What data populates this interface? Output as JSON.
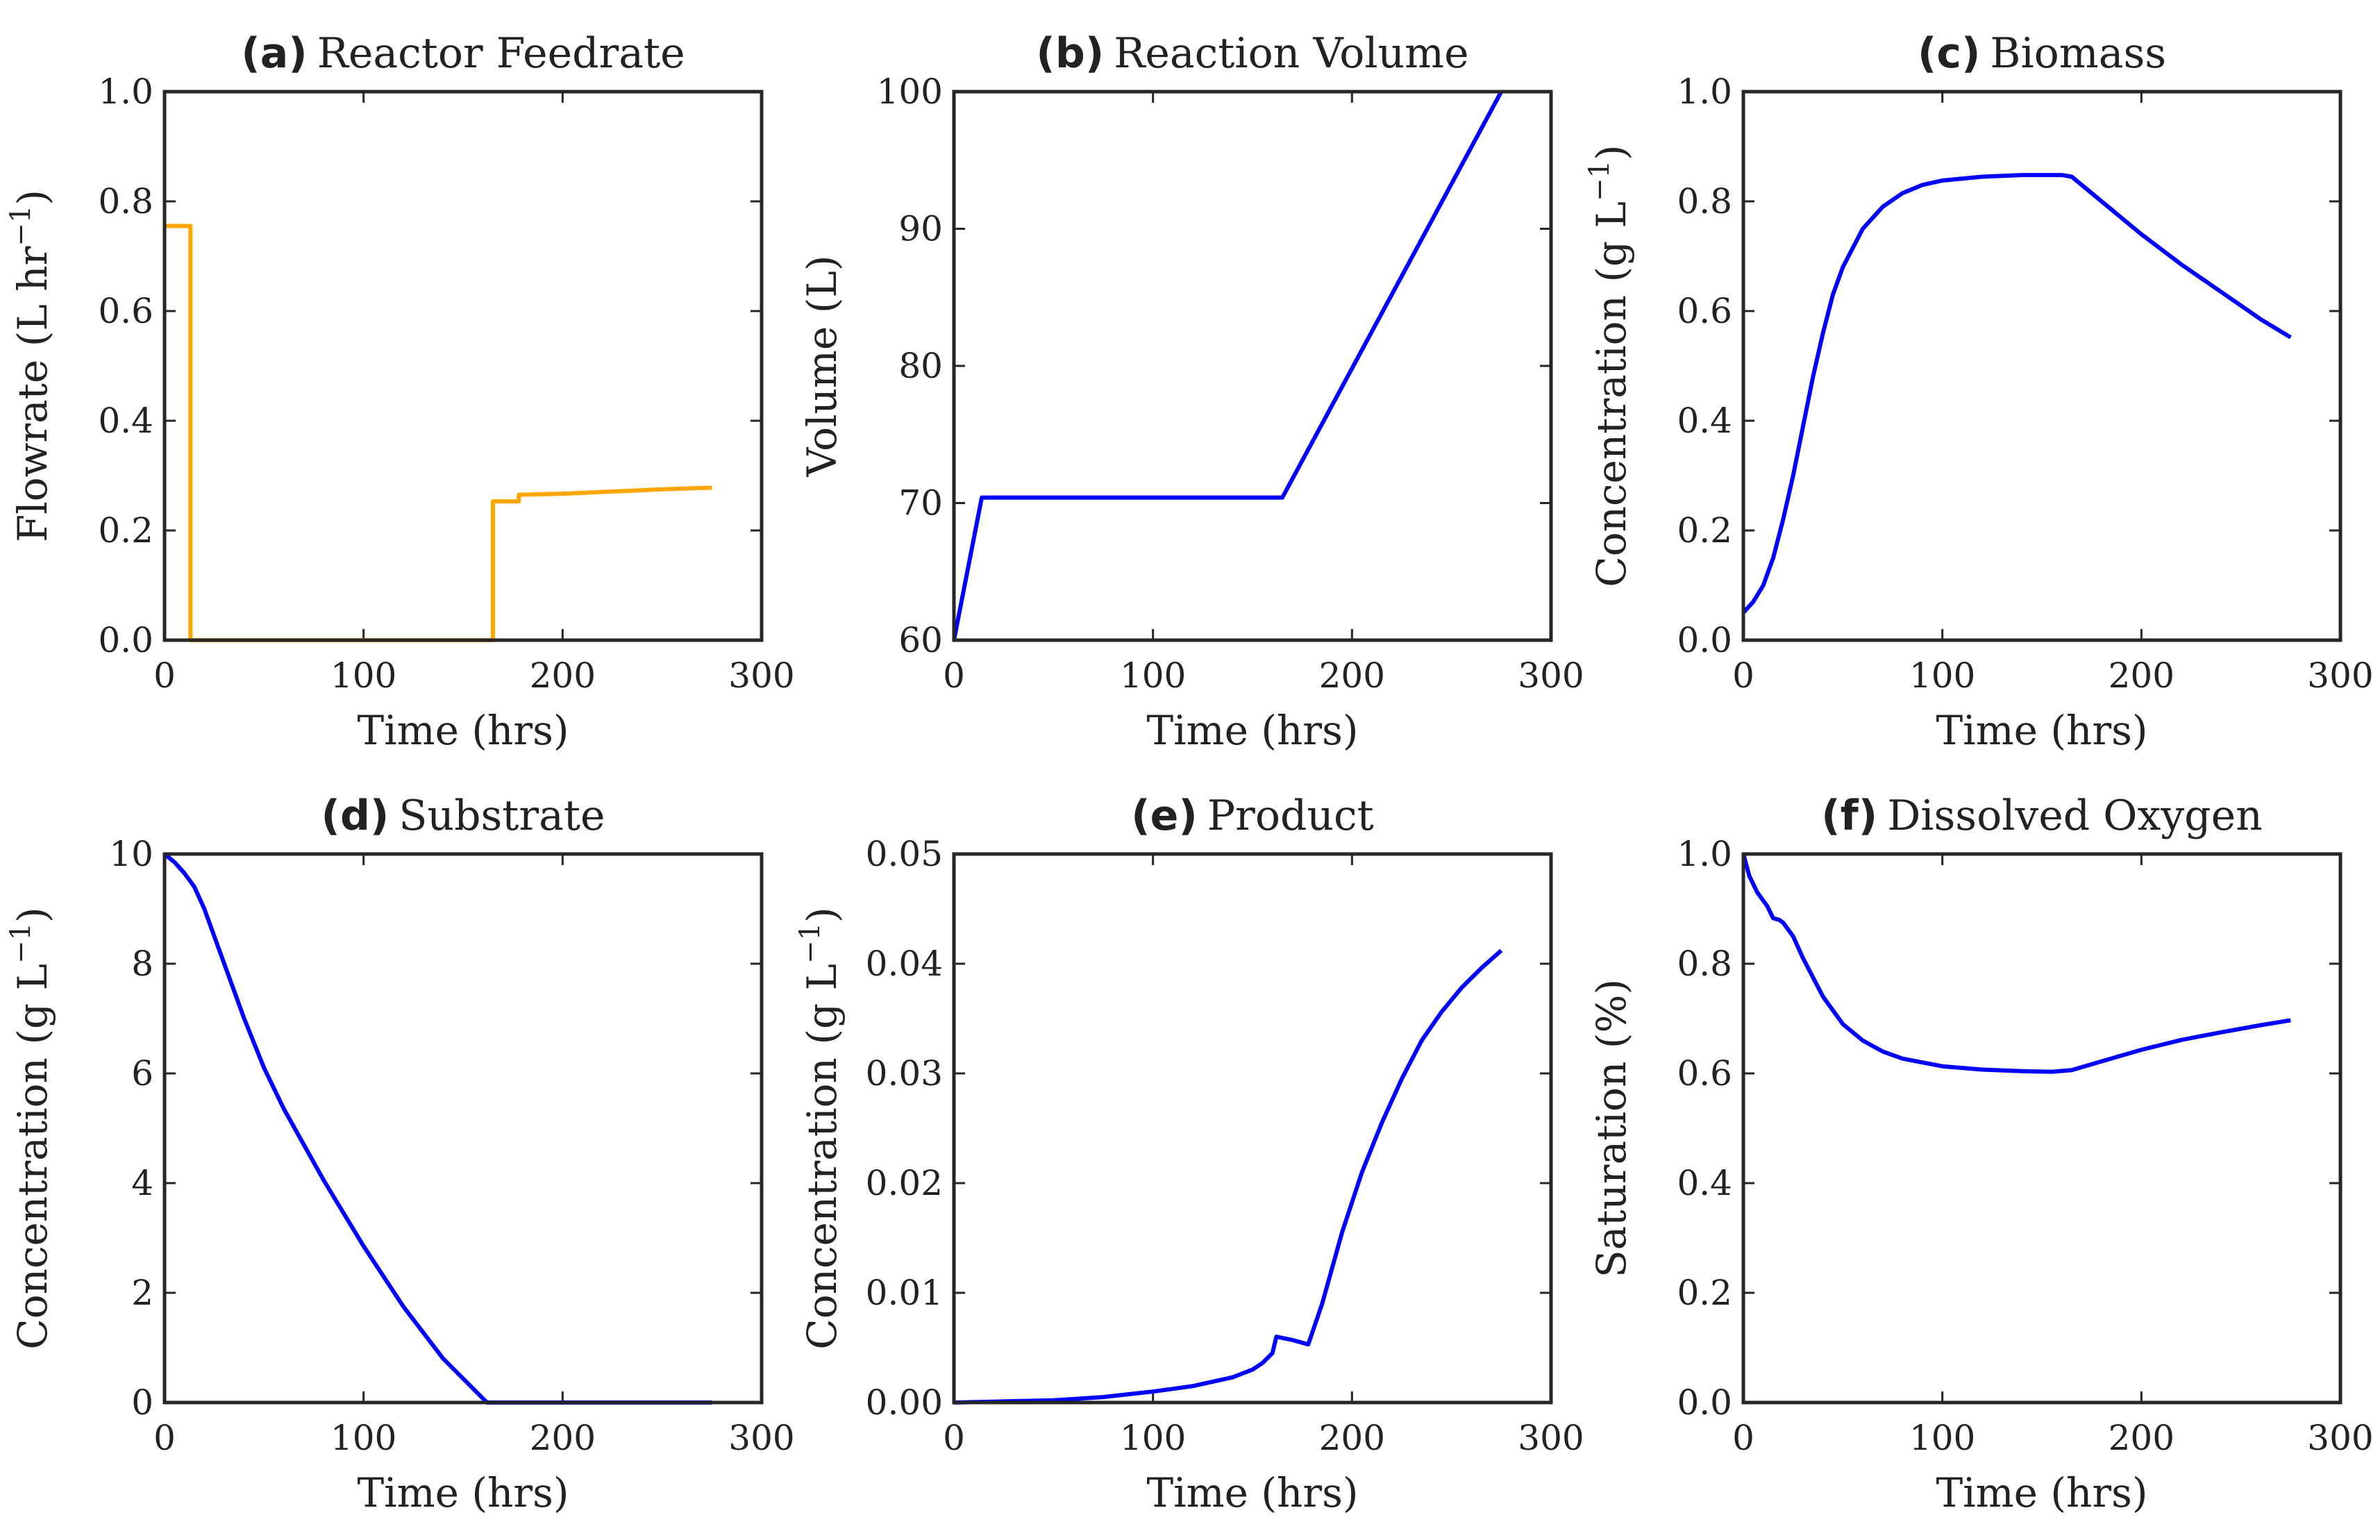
{
  "chart_data": [
    {
      "type": "line",
      "panel_letter": "(a)",
      "title": "Reactor Feedrate",
      "xlabel": "Time (hrs)",
      "ylabel": "Flowrate (L hr",
      "ylabel_sup": "−1",
      "ylabel_end": ")",
      "xlim": [
        0,
        300
      ],
      "ylim": [
        0,
        1
      ],
      "xticks": [
        0,
        100,
        200,
        300
      ],
      "yticks": [
        0,
        0.2,
        0.4,
        0.6,
        0.8,
        1.0
      ],
      "yticklabels": [
        "0.0",
        "0.2",
        "0.4",
        "0.6",
        "0.8",
        "1.0"
      ],
      "color": "#FFA500",
      "series": [
        {
          "x": [
            0,
            13,
            13,
            165,
            165,
            178,
            178,
            200,
            225,
            250,
            275
          ],
          "y": [
            0.755,
            0.755,
            0,
            0,
            0.253,
            0.253,
            0.265,
            0.267,
            0.271,
            0.275,
            0.278
          ]
        }
      ]
    },
    {
      "type": "line",
      "panel_letter": "(b)",
      "title": "Reaction Volume",
      "xlabel": "Time (hrs)",
      "ylabel": "Volume (L)",
      "ylabel_sup": "",
      "ylabel_end": "",
      "xlim": [
        0,
        300
      ],
      "ylim": [
        60,
        100
      ],
      "xticks": [
        0,
        100,
        200,
        300
      ],
      "yticks": [
        60,
        70,
        80,
        90,
        100
      ],
      "yticklabels": [
        "60",
        "70",
        "80",
        "90",
        "100"
      ],
      "color": "#0000FF",
      "series": [
        {
          "x": [
            0,
            14,
            165,
            275
          ],
          "y": [
            60,
            70.4,
            70.4,
            100
          ]
        }
      ]
    },
    {
      "type": "line",
      "panel_letter": "(c)",
      "title": "Biomass",
      "xlabel": "Time (hrs)",
      "ylabel": "Concentration (g L",
      "ylabel_sup": "−1",
      "ylabel_end": ")",
      "xlim": [
        0,
        300
      ],
      "ylim": [
        0,
        1
      ],
      "xticks": [
        0,
        100,
        200,
        300
      ],
      "yticks": [
        0,
        0.2,
        0.4,
        0.6,
        0.8,
        1.0
      ],
      "yticklabels": [
        "0.0",
        "0.2",
        "0.4",
        "0.6",
        "0.8",
        "1.0"
      ],
      "color": "#0000FF",
      "series": [
        {
          "x": [
            0,
            5,
            10,
            15,
            20,
            25,
            30,
            35,
            40,
            45,
            50,
            60,
            70,
            80,
            90,
            100,
            120,
            140,
            160,
            165,
            180,
            200,
            220,
            240,
            260,
            275
          ],
          "y": [
            0.05,
            0.07,
            0.1,
            0.15,
            0.22,
            0.3,
            0.39,
            0.48,
            0.56,
            0.63,
            0.68,
            0.75,
            0.79,
            0.815,
            0.83,
            0.838,
            0.845,
            0.848,
            0.848,
            0.845,
            0.8,
            0.74,
            0.685,
            0.635,
            0.585,
            0.552
          ]
        }
      ]
    },
    {
      "type": "line",
      "panel_letter": "(d)",
      "title": "Substrate",
      "xlabel": "Time (hrs)",
      "ylabel": "Concentration (g L",
      "ylabel_sup": "−1",
      "ylabel_end": ")",
      "xlim": [
        0,
        300
      ],
      "ylim": [
        0,
        10
      ],
      "xticks": [
        0,
        100,
        200,
        300
      ],
      "yticks": [
        0,
        2,
        4,
        6,
        8,
        10
      ],
      "yticklabels": [
        "0",
        "2",
        "4",
        "6",
        "8",
        "10"
      ],
      "color": "#0000FF",
      "series": [
        {
          "x": [
            0,
            5,
            10,
            15,
            20,
            30,
            40,
            50,
            60,
            80,
            100,
            120,
            140,
            162,
            200,
            240,
            275
          ],
          "y": [
            10,
            9.85,
            9.65,
            9.4,
            9.0,
            8.0,
            7.0,
            6.1,
            5.35,
            4.05,
            2.85,
            1.75,
            0.8,
            0,
            0,
            0,
            0
          ]
        }
      ]
    },
    {
      "type": "line",
      "panel_letter": "(e)",
      "title": "Product",
      "xlabel": "Time (hrs)",
      "ylabel": "Concentration (g L",
      "ylabel_sup": "−1",
      "ylabel_end": ")",
      "xlim": [
        0,
        300
      ],
      "ylim": [
        0,
        0.05
      ],
      "xticks": [
        0,
        100,
        200,
        300
      ],
      "yticks": [
        0,
        0.01,
        0.02,
        0.03,
        0.04,
        0.05
      ],
      "yticklabels": [
        "0.00",
        "0.01",
        "0.02",
        "0.03",
        "0.04",
        "0.05"
      ],
      "color": "#0000FF",
      "series": [
        {
          "x": [
            0,
            25,
            50,
            75,
            100,
            120,
            140,
            150,
            155,
            160,
            162,
            170,
            178,
            185,
            195,
            205,
            215,
            225,
            235,
            245,
            255,
            265,
            275
          ],
          "y": [
            0,
            0.0001,
            0.0002,
            0.0005,
            0.001,
            0.0015,
            0.0023,
            0.003,
            0.0036,
            0.0045,
            0.006,
            0.0057,
            0.0053,
            0.009,
            0.0155,
            0.021,
            0.0255,
            0.0295,
            0.033,
            0.0356,
            0.0378,
            0.0396,
            0.0412
          ]
        }
      ]
    },
    {
      "type": "line",
      "panel_letter": "(f)",
      "title": "Dissolved Oxygen",
      "xlabel": "Time (hrs)",
      "ylabel": "Saturation (%)",
      "ylabel_sup": "",
      "ylabel_end": "",
      "xlim": [
        0,
        300
      ],
      "ylim": [
        0,
        1
      ],
      "xticks": [
        0,
        100,
        200,
        300
      ],
      "yticks": [
        0,
        0.2,
        0.4,
        0.6,
        0.8,
        1.0
      ],
      "yticklabels": [
        "0.0",
        "0.2",
        "0.4",
        "0.6",
        "0.8",
        "1.0"
      ],
      "color": "#0000FF",
      "series": [
        {
          "x": [
            0,
            3,
            7,
            12,
            15,
            18,
            20,
            25,
            30,
            40,
            50,
            60,
            70,
            80,
            100,
            120,
            140,
            155,
            165,
            180,
            200,
            220,
            240,
            260,
            275
          ],
          "y": [
            1.0,
            0.96,
            0.93,
            0.905,
            0.883,
            0.88,
            0.875,
            0.85,
            0.81,
            0.74,
            0.69,
            0.66,
            0.64,
            0.627,
            0.613,
            0.607,
            0.604,
            0.603,
            0.606,
            0.622,
            0.643,
            0.661,
            0.675,
            0.688,
            0.697
          ]
        }
      ]
    }
  ]
}
